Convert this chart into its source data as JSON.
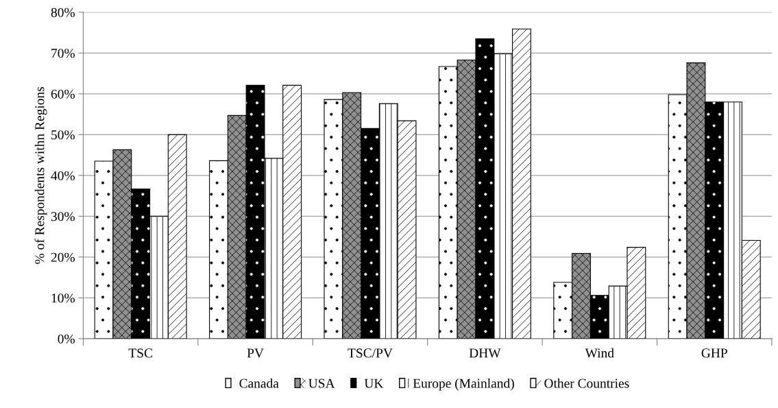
{
  "chart_data": {
    "type": "bar",
    "ylabel": "% of Respondents withn Regions",
    "categories": [
      "TSC",
      "PV",
      "TSC/PV",
      "DHW",
      "Wind",
      "GHP"
    ],
    "series": [
      {
        "name": "Canada",
        "color": "#ffffff",
        "values": [
          43.5,
          43.6,
          58.6,
          66.7,
          13.8,
          59.8
        ]
      },
      {
        "name": "USA",
        "color": "#909090",
        "values": [
          46.3,
          54.7,
          60.3,
          68.3,
          20.9,
          67.6
        ]
      },
      {
        "name": "UK",
        "color": "#000000",
        "values": [
          36.7,
          62.1,
          51.5,
          73.5,
          10.6,
          58.0
        ]
      },
      {
        "name": "Europe (Mainland)",
        "color": "#ffffff",
        "values": [
          30.0,
          44.2,
          57.6,
          69.8,
          12.9,
          58.0
        ]
      },
      {
        "name": "Other Countries",
        "color": "#ffffff",
        "values": [
          50.0,
          62.1,
          53.4,
          75.9,
          22.4,
          24.1
        ]
      }
    ],
    "ylim": [
      0,
      80
    ],
    "yticks": [
      {
        "value": 0,
        "label": "0%"
      },
      {
        "value": 10,
        "label": "10%"
      },
      {
        "value": 20,
        "label": "20%"
      },
      {
        "value": 30,
        "label": "30%"
      },
      {
        "value": 40,
        "label": "40%"
      },
      {
        "value": 50,
        "label": "50%"
      },
      {
        "value": 60,
        "label": "60%"
      },
      {
        "value": 70,
        "label": "70%"
      },
      {
        "value": 80,
        "label": "80%"
      }
    ],
    "grid": "y",
    "legend": "bottom"
  }
}
